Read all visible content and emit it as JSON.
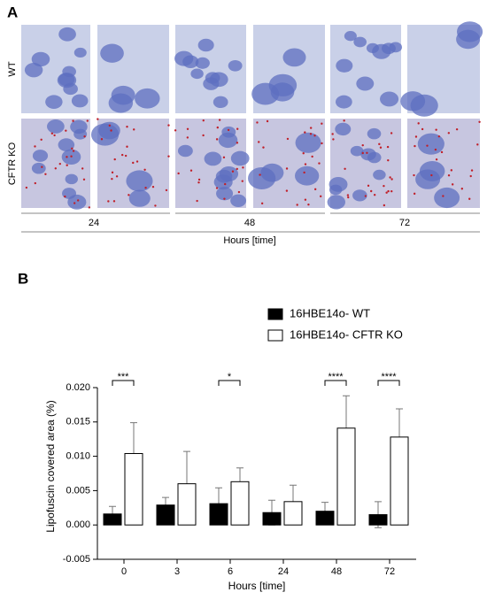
{
  "panel_a": {
    "label": "A",
    "row_labels": [
      "WT",
      "CFTR KO"
    ],
    "time_labels": [
      "24",
      "48",
      "72"
    ],
    "axis_label": "Hours [time]"
  },
  "panel_b_label": "B",
  "chart_data": {
    "type": "bar",
    "y_label": "Lipofuscin covered area (%)",
    "x_label": "Hours [time]",
    "categories": [
      "0",
      "3",
      "6",
      "24",
      "48",
      "72"
    ],
    "series": [
      {
        "name": "16HBE14o- WT",
        "color": "#000000",
        "values": [
          0.0016,
          0.0029,
          0.0031,
          0.0018,
          0.002,
          0.0015
        ],
        "errors": [
          0.0011,
          0.0011,
          0.0023,
          0.0018,
          0.0013,
          0.0019
        ]
      },
      {
        "name": "16HBE14o- CFTR KO",
        "color": "#ffffff",
        "values": [
          0.0104,
          0.006,
          0.0063,
          0.0034,
          0.0141,
          0.0128
        ],
        "errors": [
          0.0045,
          0.0047,
          0.002,
          0.0024,
          0.0047,
          0.0041
        ]
      }
    ],
    "significance": [
      "***",
      null,
      "*",
      null,
      "****",
      "****"
    ],
    "ylim": [
      -0.005,
      0.02
    ],
    "yticks": [
      -0.005,
      {
        "value": 0,
        "label": "0.000"
      },
      0.005,
      {
        "value": 0.01,
        "label": "0.010"
      },
      0.015,
      {
        "value": 0.02,
        "label": "0.020"
      }
    ],
    "legend": "top-right",
    "grid": false
  }
}
